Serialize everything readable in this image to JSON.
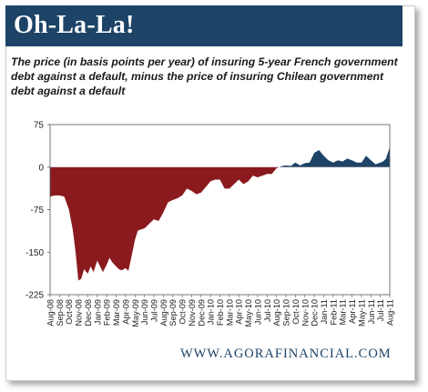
{
  "header": {
    "title": "Oh-La-La!"
  },
  "footer": {
    "source": "WWW.AGORAFINANCIAL.COM"
  },
  "colors": {
    "title_bar": "#1d4367",
    "negative_fill": "#8b1a1e",
    "positive_fill": "#1d4367",
    "footer_text": "#1d4367"
  },
  "chart_data": {
    "type": "area",
    "title": "The price (in basis points per year) of insuring 5-year French government debt against a default, minus the price of insuring Chilean government debt against a default",
    "xlabel": "",
    "ylabel": "",
    "ylim": [
      -225,
      75
    ],
    "yticks": [
      "75",
      "0",
      "-75",
      "-150",
      "-225"
    ],
    "ytick_values": [
      75,
      0,
      -75,
      -150,
      -225
    ],
    "grid": false,
    "legend": "none",
    "categories": [
      "Aug-08",
      "Sep-08",
      "Oct-08",
      "Nov-08",
      "Dec-08",
      "Jan-09",
      "Feb-09",
      "Mar-09",
      "Apr-09",
      "May-09",
      "Jun-09",
      "Jul-09",
      "Aug-09",
      "Sep-09",
      "Oct-09",
      "Nov-09",
      "Dec-09",
      "Jan-10",
      "Feb-10",
      "Mar-10",
      "Apr-10",
      "May-10",
      "Jun-10",
      "Jul-10",
      "Aug-10",
      "Sep-10",
      "Oct-10",
      "Nov-10",
      "Dec-10",
      "Jan-11",
      "Feb-11",
      "Mar-11",
      "Apr-11",
      "May-11",
      "Jun-11",
      "Jul-11",
      "Aug-11"
    ],
    "series": [
      {
        "x": [
          0,
          0.5,
          1,
          1.5,
          2,
          2.4,
          2.7,
          3,
          3.3,
          3.6,
          4,
          4.3,
          4.6,
          5,
          5.3,
          5.6,
          6,
          6.3,
          6.6,
          7,
          7.3,
          7.6,
          8,
          8.3,
          8.6,
          9,
          9.3,
          9.6,
          10,
          10.5,
          11,
          11.5,
          12,
          12.5,
          13,
          13.5,
          14,
          14.5,
          15,
          15.5,
          16,
          16.5,
          17,
          17.5,
          18,
          18.5,
          19,
          19.5,
          20,
          20.5,
          21,
          21.5,
          22,
          22.5,
          23,
          23.5,
          24,
          24.3,
          24.6,
          25,
          25.5,
          26,
          26.5,
          27,
          27.5,
          28,
          28.5,
          29,
          29.5,
          30,
          30.5,
          31,
          31.5,
          32,
          32.5,
          33,
          33.5,
          34,
          34.5,
          35,
          35.3,
          35.6,
          35.9,
          36.2,
          36.5
        ],
        "values": [
          -52,
          -50,
          -50,
          -52,
          -75,
          -110,
          -150,
          -200,
          -197,
          -180,
          -188,
          -175,
          -185,
          -165,
          -175,
          -185,
          -172,
          -160,
          -168,
          -175,
          -180,
          -182,
          -178,
          -183,
          -160,
          -128,
          -112,
          -110,
          -108,
          -100,
          -92,
          -95,
          -80,
          -62,
          -58,
          -55,
          -50,
          -38,
          -42,
          -48,
          -45,
          -35,
          -25,
          -22,
          -22,
          -38,
          -38,
          -30,
          -22,
          -30,
          -25,
          -15,
          -18,
          -15,
          -12,
          -12,
          -2,
          0,
          2,
          3,
          2,
          8,
          3,
          7,
          8,
          25,
          30,
          20,
          12,
          8,
          12,
          10,
          15,
          12,
          8,
          8,
          20,
          12,
          5,
          8,
          10,
          15,
          30,
          48,
          45
        ]
      }
    ]
  }
}
